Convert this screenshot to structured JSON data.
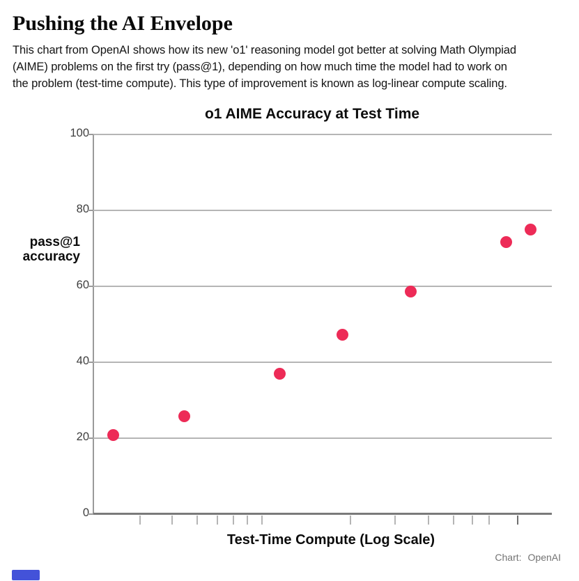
{
  "header": {
    "title": "Pushing the AI Envelope",
    "description_lines": [
      "This chart from OpenAI shows how its new 'o1' reasoning model got better at solving Math Olympiad",
      "(AIME) problems on the first try (pass@1), depending on how much time the model had to work on",
      "the problem (test-time compute). This type of improvement is known as log-linear compute scaling."
    ]
  },
  "chart": {
    "title": "o1 AIME Accuracy at Test Time",
    "y_axis_title_line1": "pass@1",
    "y_axis_title_line2": "accuracy",
    "x_axis_label": "Test-Time Compute (Log Scale)",
    "credit_label": "Chart:",
    "credit_source": "OpenAI"
  },
  "chart_data": {
    "type": "scatter",
    "title": "o1 AIME Accuracy at Test Time",
    "xlabel": "Test-Time Compute (Log Scale)",
    "ylabel": "pass@1 accuracy",
    "x_scale": "log",
    "x_tick_labels_visible": false,
    "ylim": [
      0,
      100
    ],
    "y_ticks": [
      0,
      20,
      40,
      60,
      80,
      100
    ],
    "grid": "horizontal",
    "legend": "none",
    "points": [
      {
        "x_fraction": 0.043,
        "pass1": 20.9
      },
      {
        "x_fraction": 0.198,
        "pass1": 25.7
      },
      {
        "x_fraction": 0.407,
        "pass1": 36.9
      },
      {
        "x_fraction": 0.543,
        "pass1": 47.3
      },
      {
        "x_fraction": 0.692,
        "pass1": 58.7
      },
      {
        "x_fraction": 0.9,
        "pass1": 71.6
      },
      {
        "x_fraction": 0.953,
        "pass1": 75.0
      }
    ],
    "x_ticks": [
      {
        "f": 0.102
      },
      {
        "f": 0.172
      },
      {
        "f": 0.226
      },
      {
        "f": 0.271
      },
      {
        "f": 0.306
      },
      {
        "f": 0.336
      },
      {
        "f": 0.368
      },
      {
        "f": 0.561
      },
      {
        "f": 0.658
      },
      {
        "f": 0.731
      },
      {
        "f": 0.786
      },
      {
        "f": 0.827
      },
      {
        "f": 0.863
      },
      {
        "f": 0.926,
        "major": true
      }
    ],
    "point_color": "#ED2B57",
    "grid_color": "#b5b5b5",
    "axis_color": "#7a7a7a",
    "accent_logo_color": "#4352D9"
  }
}
